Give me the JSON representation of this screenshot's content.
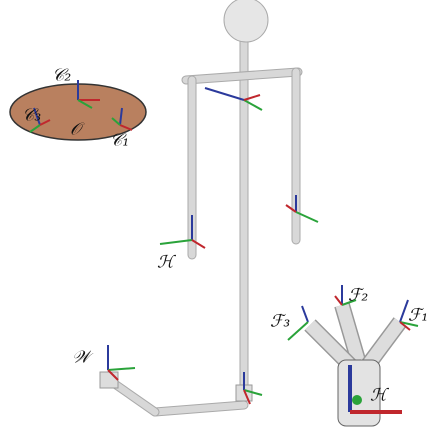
{
  "ellipse_labels": [
    "𝒞₂",
    "𝒞₃",
    "𝒪",
    "𝒞₁"
  ],
  "robot_labels": [
    "ℋ",
    "𝒲"
  ],
  "gripper_labels": [
    "ℱ₂",
    "ℱ₃",
    "ℱ₁",
    "ℋ"
  ]
}
